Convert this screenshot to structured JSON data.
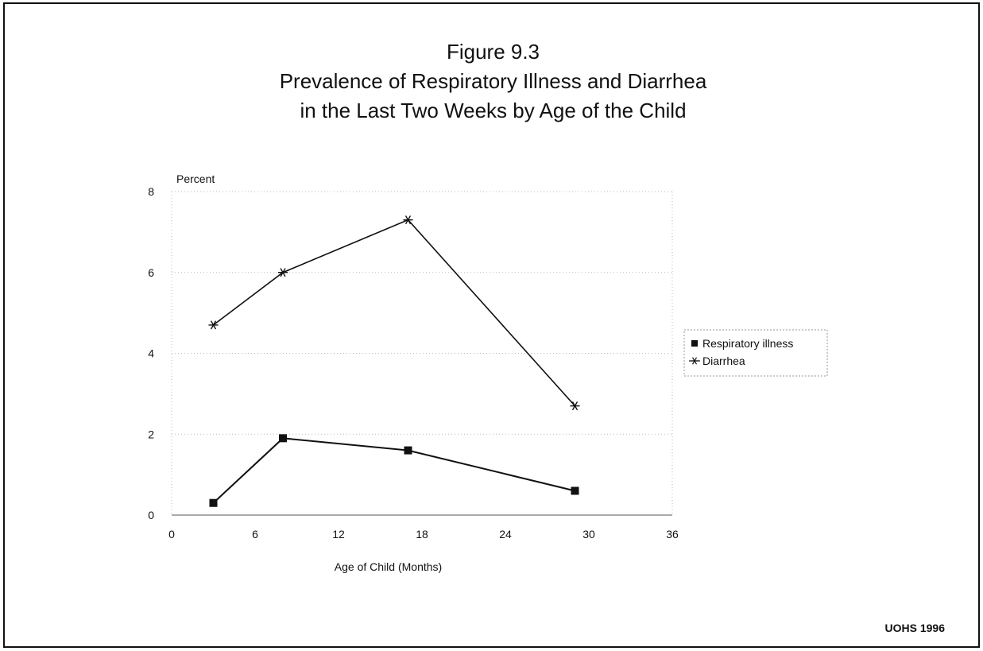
{
  "title_lines": [
    "Figure 9.3",
    "Prevalence of Respiratory Illness and Diarrhea",
    "in the Last Two Weeks by Age of the Child"
  ],
  "source": "UOHS 1996",
  "chart_data": {
    "type": "line",
    "title": "Figure 9.3 Prevalence of Respiratory Illness and Diarrhea in the Last Two Weeks by Age of the Child",
    "xlabel": "Age of Child (Months)",
    "ylabel": "Percent",
    "xlim": [
      0,
      36
    ],
    "ylim": [
      0,
      8
    ],
    "xticks": [
      0,
      6,
      12,
      18,
      24,
      30,
      36
    ],
    "yticks": [
      0,
      2,
      4,
      6,
      8
    ],
    "legend_position": "right",
    "series": [
      {
        "name": "Respiratory illness",
        "marker": "square",
        "x": [
          3,
          8,
          17,
          29
        ],
        "y": [
          0.3,
          1.9,
          1.6,
          0.6
        ]
      },
      {
        "name": "Diarrhea",
        "marker": "star",
        "x": [
          3,
          8,
          17,
          29
        ],
        "y": [
          4.7,
          6.0,
          7.3,
          2.7
        ]
      }
    ]
  }
}
